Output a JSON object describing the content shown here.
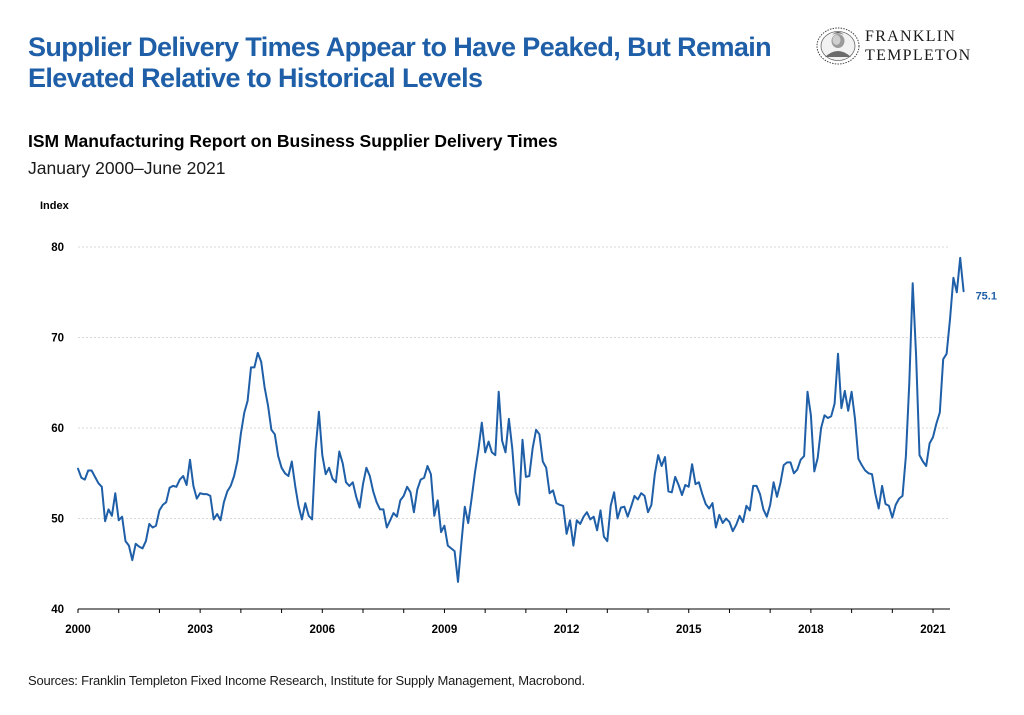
{
  "headline": {
    "line1": "Supplier Delivery Times Appear to Have Peaked, But Remain",
    "line2": "Elevated Relative to Historical Levels"
  },
  "logo": {
    "line1": "FRANKLIN",
    "line2": "TEMPLETON",
    "icon": "franklin-portrait-seal-icon"
  },
  "source": "Sources: Franklin Templeton Fixed Income Research, Institute for Supply Management, Macrobond.",
  "colors": {
    "headline": "#1f5fa8",
    "series": "#1f5fa8",
    "grid": "#d9d9d9",
    "axis": "#000000"
  },
  "chart_data": {
    "type": "line",
    "title": "ISM Manufacturing Report on Business Supplier Delivery Times",
    "subtitle": "January 2000–June 2021",
    "ylabel": "Index",
    "xlabel": "",
    "ylim": [
      40,
      80
    ],
    "yticks": [
      40,
      50,
      60,
      70,
      80
    ],
    "xticks": [
      "2000",
      "2003",
      "2006",
      "2009",
      "2012",
      "2015",
      "2018",
      "2021"
    ],
    "xrange": [
      "2000-01",
      "2021-06"
    ],
    "grid": "horizontal",
    "legend": "none",
    "end_label": "75.1",
    "series": [
      {
        "start": "2000-01",
        "frequency": "monthly",
        "values": [
          55.5,
          54.5,
          54.3,
          55.3,
          55.3,
          54.6,
          53.9,
          53.5,
          49.7,
          51.0,
          50.3,
          52.8,
          49.8,
          50.2,
          47.5,
          47.0,
          45.4,
          47.2,
          46.9,
          46.7,
          47.5,
          49.4,
          49.0,
          49.2,
          50.9,
          51.5,
          51.8,
          53.4,
          53.6,
          53.5,
          54.3,
          54.7,
          53.7,
          56.5,
          53.6,
          52.2,
          52.8,
          52.7,
          52.7,
          52.5,
          49.9,
          50.5,
          49.8,
          51.8,
          53.0,
          53.6,
          54.7,
          56.4,
          59.4,
          61.7,
          63.0,
          66.7,
          66.7,
          68.3,
          67.3,
          64.5,
          62.5,
          59.8,
          59.3,
          56.9,
          55.6,
          55.0,
          54.7,
          56.3,
          53.6,
          51.4,
          49.9,
          51.7,
          50.3,
          49.9,
          57.5,
          61.8,
          57.0,
          54.9,
          55.6,
          54.4,
          54.0,
          57.4,
          56.1,
          54.0,
          53.6,
          54.0,
          52.4,
          51.2,
          53.8,
          55.6,
          54.7,
          53.0,
          51.8,
          51.0,
          51.0,
          49.0,
          49.8,
          50.6,
          50.2,
          52.0,
          52.5,
          53.5,
          52.9,
          50.7,
          53.2,
          54.3,
          54.5,
          55.8,
          54.9,
          50.3,
          52.0,
          48.5,
          49.2,
          47.0,
          46.7,
          46.4,
          43.0,
          47.3,
          51.3,
          49.5,
          52.2,
          55.1,
          57.6,
          60.6,
          57.3,
          58.5,
          57.3,
          57.0,
          64.0,
          58.6,
          57.3,
          61.0,
          57.7,
          52.9,
          51.5,
          58.7,
          54.6,
          54.7,
          57.8,
          59.8,
          59.3,
          56.3,
          55.6,
          52.8,
          53.1,
          51.7,
          51.5,
          51.4,
          48.3,
          49.8,
          47.0,
          49.8,
          49.4,
          50.2,
          50.7,
          49.9,
          50.2,
          48.7,
          50.9,
          48.0,
          47.5,
          51.4,
          52.9,
          50.0,
          51.2,
          51.3,
          50.2,
          51.3,
          52.5,
          52.1,
          52.8,
          52.5,
          50.7,
          51.5,
          54.9,
          57.0,
          55.8,
          56.8,
          53.0,
          52.9,
          54.6,
          53.7,
          52.6,
          53.7,
          53.5,
          56.0,
          53.8,
          54.0,
          52.7,
          51.6,
          51.1,
          51.7,
          49.0,
          50.4,
          49.5,
          50.0,
          49.6,
          48.6,
          49.3,
          50.3,
          49.6,
          51.4,
          50.9,
          53.6,
          53.6,
          52.7,
          51.0,
          50.2,
          51.5,
          54.0,
          52.4,
          53.9,
          55.9,
          56.2,
          56.2,
          55.0,
          55.4,
          56.5,
          56.9,
          64.0,
          61.4,
          55.2,
          56.7,
          60.0,
          61.4,
          61.1,
          61.3,
          62.7,
          68.2,
          62.2,
          64.1,
          61.9,
          64.0,
          61.0,
          56.6,
          55.9,
          55.3,
          55.0,
          54.9,
          52.7,
          51.1,
          53.6,
          51.6,
          51.4,
          50.1,
          51.5,
          52.2,
          52.5,
          56.9,
          65.0,
          76.0,
          68.0,
          57.0,
          56.3,
          55.8,
          58.3,
          59.0,
          60.5,
          61.7,
          67.6,
          68.2,
          72.0,
          76.6,
          75.0,
          78.8,
          75.1
        ]
      }
    ]
  }
}
